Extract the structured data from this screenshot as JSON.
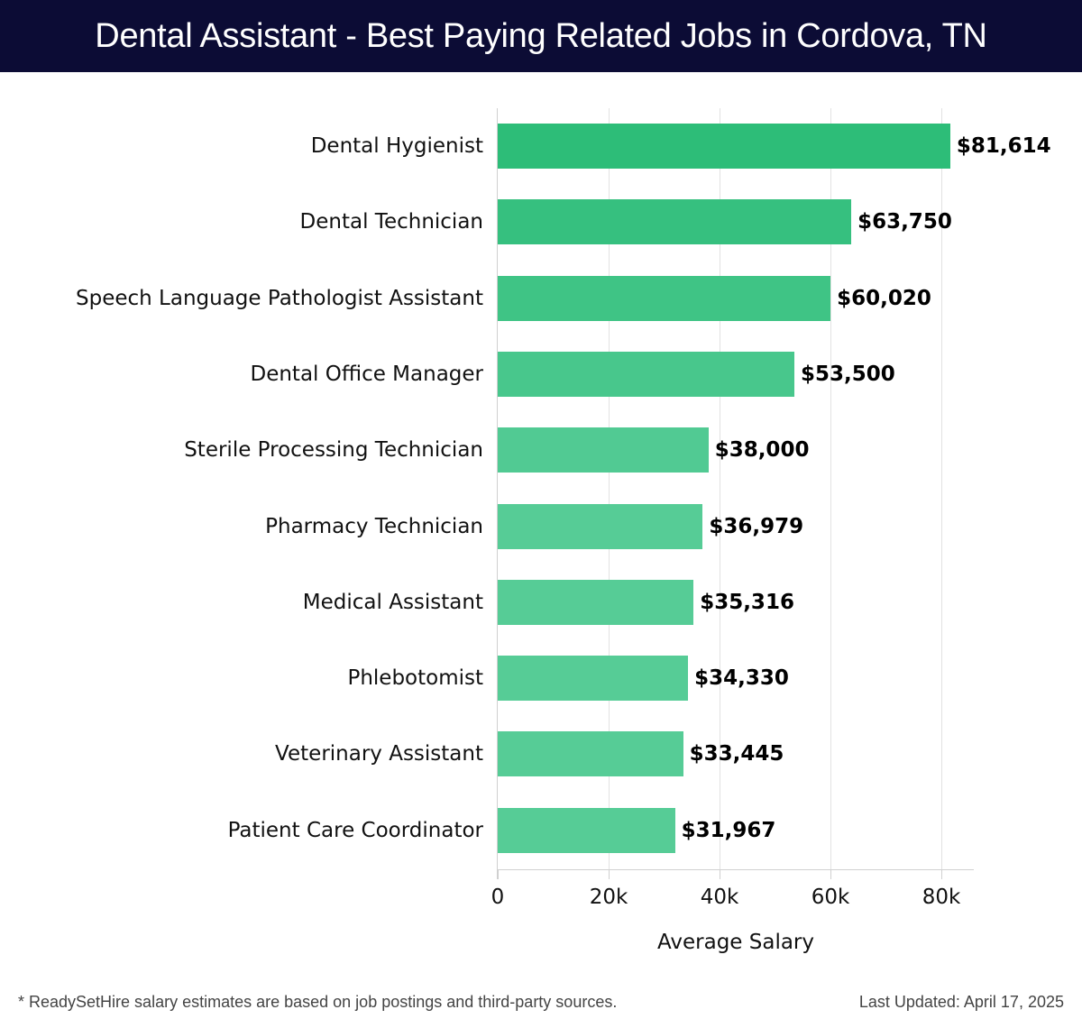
{
  "header": {
    "title": "Dental Assistant - Best Paying Related Jobs in Cordova, TN"
  },
  "footer": {
    "note": "* ReadySetHire salary estimates are based on job postings and third-party sources.",
    "updated": "Last Updated: April 17, 2025"
  },
  "colors": {
    "header_bg": "#0c0c35",
    "bar_top": "#2dbd78",
    "bar_bottom": "#56cc96"
  },
  "chart_data": {
    "type": "bar",
    "orientation": "horizontal",
    "title": "Dental Assistant - Best Paying Related Jobs in Cordova, TN",
    "xlabel": "Average Salary",
    "ylabel": "",
    "xlim": [
      0,
      86000
    ],
    "xticks": [
      0,
      20000,
      40000,
      60000,
      80000
    ],
    "xtick_labels": [
      "0",
      "20k",
      "40k",
      "60k",
      "80k"
    ],
    "grid": true,
    "legend": "none",
    "categories": [
      "Dental Hygienist",
      "Dental Technician",
      "Speech Language Pathologist Assistant",
      "Dental Office Manager",
      "Sterile Processing Technician",
      "Pharmacy Technician",
      "Medical Assistant",
      "Phlebotomist",
      "Veterinary Assistant",
      "Patient Care Coordinator"
    ],
    "values": [
      81614,
      63750,
      60020,
      53500,
      38000,
      36979,
      35316,
      34330,
      33445,
      31967
    ],
    "value_labels": [
      "$81,614",
      "$63,750",
      "$60,020",
      "$53,500",
      "$38,000",
      "$36,979",
      "$35,316",
      "$34,330",
      "$33,445",
      "$31,967"
    ]
  }
}
